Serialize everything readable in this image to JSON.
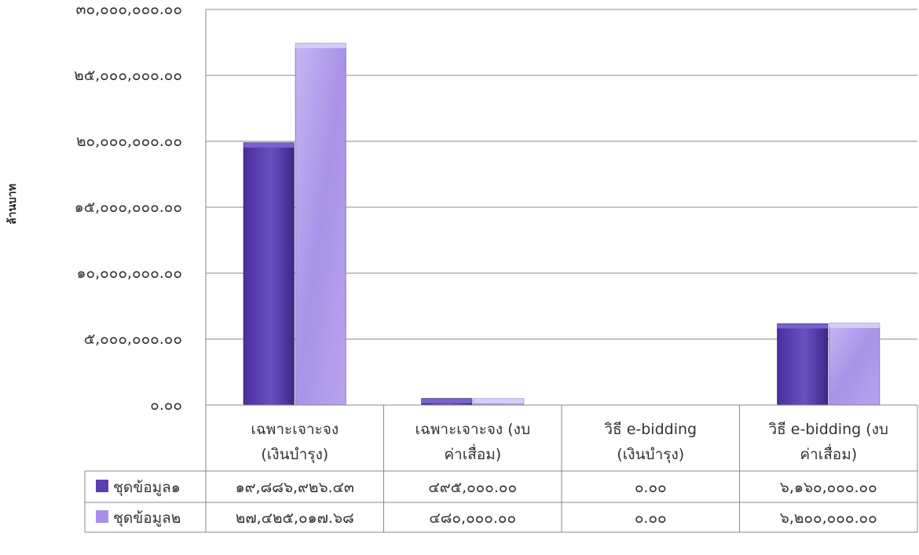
{
  "chart_data": {
    "type": "bar",
    "title": "",
    "ylabel": "ล้านบาท",
    "ylim": [
      0,
      30000000
    ],
    "yticks": [
      0,
      5000000,
      10000000,
      15000000,
      20000000,
      25000000,
      30000000
    ],
    "ytick_labels": [
      "๐.๐๐",
      "๕,๐๐๐,๐๐๐.๐๐",
      "๑๐,๐๐๐,๐๐๐.๐๐",
      "๑๕,๐๐๐,๐๐๐.๐๐",
      "๒๐,๐๐๐,๐๐๐.๐๐",
      "๒๕,๐๐๐,๐๐๐.๐๐",
      "๓๐,๐๐๐,๐๐๐.๐๐"
    ],
    "categories": [
      [
        "เฉพาะเจาะจง",
        "(เงินบำรุง)"
      ],
      [
        "เฉพาะเจาะจง (งบ",
        "ค่าเสื่อม)"
      ],
      [
        "วิธี e-bidding",
        "(เงินบำรุง)"
      ],
      [
        "วิธี e-bidding (งบ",
        "ค่าเสื่อม)"
      ]
    ],
    "grid": true,
    "legend": "data-table",
    "series": [
      {
        "name": "ชุดข้อมูล๑",
        "color": "#5b3fb0",
        "values": [
          19886926.43,
          495000,
          0,
          6160000
        ],
        "labels": [
          "๑๙,๘๘๖,๙๒๖.๔๓",
          "๔๙๕,๐๐๐.๐๐",
          "๐.๐๐",
          "๖,๑๖๐,๐๐๐.๐๐"
        ]
      },
      {
        "name": "ชุดข้อมูล๒",
        "color": "#a88ee6",
        "values": [
          27425017.68,
          480000,
          0,
          6200000
        ],
        "labels": [
          "๒๗,๔๒๕,๐๑๗.๖๘",
          "๔๘๐,๐๐๐.๐๐",
          "๐.๐๐",
          "๖,๒๐๐,๐๐๐.๐๐"
        ]
      }
    ]
  }
}
